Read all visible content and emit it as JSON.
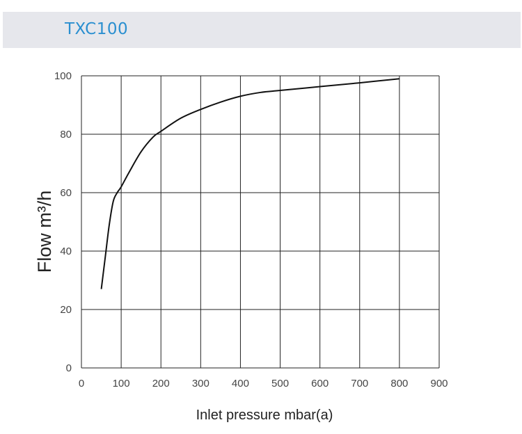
{
  "header": {
    "title": "TXC100"
  },
  "chart_data": {
    "type": "line",
    "xlabel": "Inlet pressure mbar(a)",
    "ylabel": "Flow m³/h",
    "xlim": [
      0,
      900
    ],
    "ylim": [
      0,
      100
    ],
    "xticks": [
      0,
      100,
      200,
      300,
      400,
      500,
      600,
      700,
      800,
      900
    ],
    "yticks": [
      0,
      20,
      40,
      60,
      80,
      100
    ],
    "grid": true,
    "colors": {
      "line": "#111111",
      "grid": "#222222"
    },
    "series": [
      {
        "x": [
          50,
          60,
          70,
          80,
          90,
          100,
          120,
          150,
          180,
          200,
          250,
          300,
          350,
          400,
          450,
          500,
          600,
          700,
          800
        ],
        "y": [
          27,
          38,
          49,
          57,
          60,
          62,
          67,
          74,
          79,
          81,
          85.5,
          88.5,
          91,
          93,
          94.3,
          95,
          96.3,
          97.6,
          99
        ]
      }
    ]
  }
}
